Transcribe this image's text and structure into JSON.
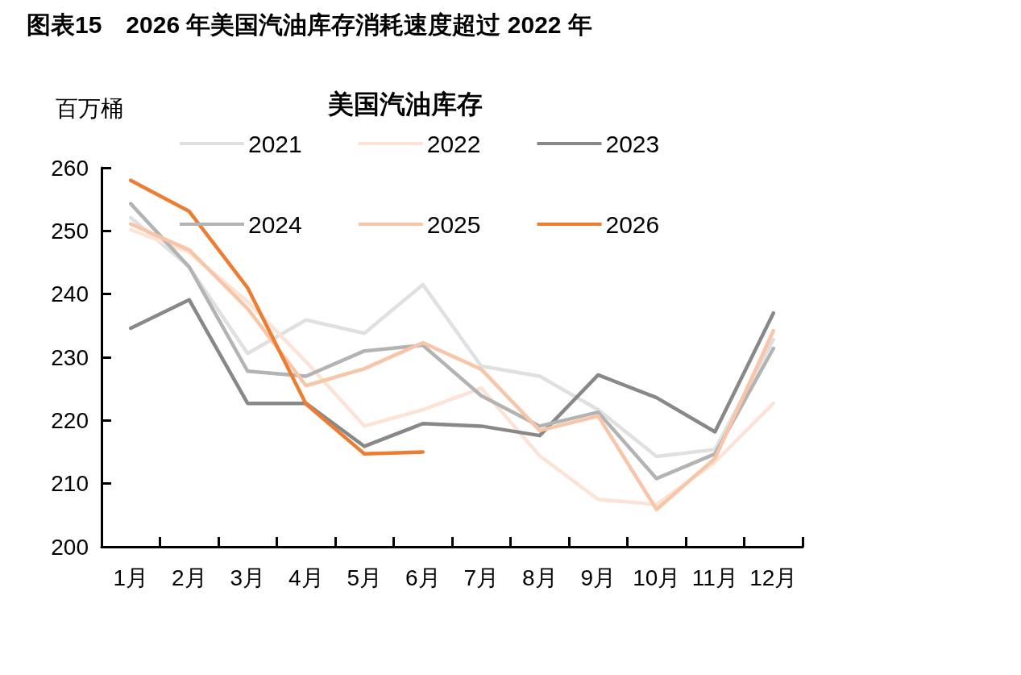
{
  "chart_data": {
    "type": "line",
    "title": "图表15　2026 年美国汽油库存消耗速度超过 2022 年",
    "subtitle": "美国汽油库存",
    "ylabel": "百万桶",
    "categories": [
      "1月",
      "2月",
      "3月",
      "4月",
      "5月",
      "6月",
      "7月",
      "8月",
      "9月",
      "10月",
      "11月",
      "12月"
    ],
    "series": [
      {
        "name": "2021",
        "color": "#e0e0e0",
        "values": [
          252.1,
          244.3,
          230.6,
          235.9,
          233.8,
          241.5,
          228.6,
          227.0,
          221.7,
          214.3,
          215.4,
          232.8
        ]
      },
      {
        "name": "2022",
        "color": "#fde3d6",
        "values": [
          250.2,
          246.6,
          238.8,
          229.3,
          219.1,
          221.7,
          225.1,
          214.4,
          207.5,
          206.7,
          213.4,
          222.7
        ]
      },
      {
        "name": "2023",
        "color": "#888888",
        "values": [
          234.6,
          239.1,
          222.7,
          222.7,
          215.9,
          219.5,
          219.1,
          217.6,
          227.2,
          223.6,
          218.2,
          237.0
        ]
      },
      {
        "name": "2024",
        "color": "#b3b3b3",
        "values": [
          254.3,
          244.3,
          227.8,
          227.0,
          231.0,
          231.9,
          223.9,
          219.1,
          221.3,
          210.8,
          214.7,
          231.4
        ]
      },
      {
        "name": "2025",
        "color": "#f8c5a8",
        "values": [
          251.1,
          247.0,
          237.7,
          225.5,
          228.2,
          232.3,
          228.1,
          218.4,
          220.7,
          205.9,
          214.0,
          234.2
        ]
      },
      {
        "name": "2026",
        "color": "#ed7d31",
        "values": [
          258.0,
          253.1,
          241.0,
          222.6,
          214.7,
          215.0,
          null,
          null,
          null,
          null,
          null,
          null
        ]
      }
    ],
    "ylim": [
      200,
      260
    ],
    "yticks": [
      200,
      210,
      220,
      230,
      240,
      250,
      260
    ],
    "grid": false,
    "legend": "top",
    "marker": "none",
    "line_style": "solid"
  }
}
